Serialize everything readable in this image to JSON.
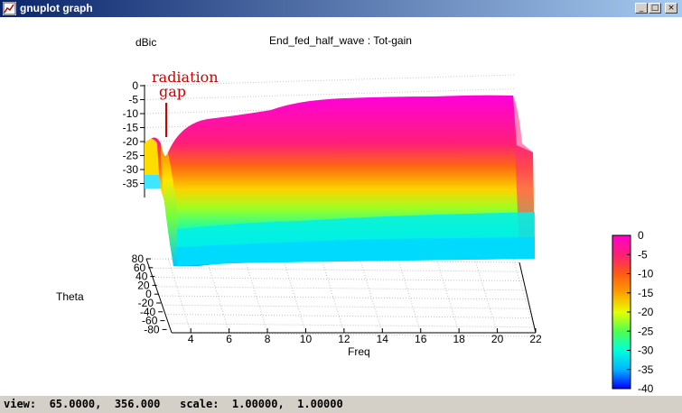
{
  "window": {
    "title": "gnuplot graph",
    "buttons": {
      "minimize": "_",
      "maximize": "□",
      "close": "×"
    }
  },
  "status": {
    "view_label": "view:",
    "view_values": "65.0000,  356.000",
    "scale_label": "scale:",
    "scale_values": "1.00000,  1.00000"
  },
  "annotation": {
    "line1": "radiation",
    "line2": "gap",
    "color": "#cc0000"
  },
  "chart_data": {
    "type": "surface",
    "title": "End_fed_half_wave : Tot-gain",
    "zlabel": "dBic",
    "xlabel": "Freq",
    "ylabel": "Theta",
    "x_ticks": [
      "4",
      "6",
      "8",
      "10",
      "12",
      "14",
      "16",
      "18",
      "20",
      "22"
    ],
    "y_ticks": [
      "80",
      "60",
      "40",
      "20",
      "0",
      "-20",
      "-40",
      "-60",
      "-80"
    ],
    "z_ticks": [
      "0",
      "-5",
      "-10",
      "-15",
      "-20",
      "-25",
      "-30",
      "-35",
      "-40"
    ],
    "xlim": [
      3,
      22
    ],
    "ylim": [
      -80,
      80
    ],
    "zlim": [
      -40,
      0
    ],
    "colorbar": {
      "ticks": [
        "0",
        "-5",
        "-10",
        "-15",
        "-20",
        "-25",
        "-30",
        "-35",
        "-40"
      ],
      "range": [
        -40,
        0
      ],
      "colors": [
        "#ff00cc",
        "#ff1e78",
        "#ff5a14",
        "#ffa000",
        "#e6ff00",
        "#50ff50",
        "#00ffdc",
        "#00b4ff",
        "#0000ff"
      ]
    },
    "view": {
      "rot_x": 65,
      "rot_z": 356
    },
    "surface_profile_note_excluded": true,
    "profile_freq": [
      3,
      3.3,
      3.6,
      4,
      5,
      6,
      8,
      10,
      12,
      14,
      16,
      18,
      20,
      21.8
    ],
    "profile_top_gain": [
      -20,
      -23,
      -30,
      -24,
      -13,
      -11,
      -9,
      -7,
      -3,
      -2,
      -2,
      -2,
      -2,
      -2
    ]
  }
}
